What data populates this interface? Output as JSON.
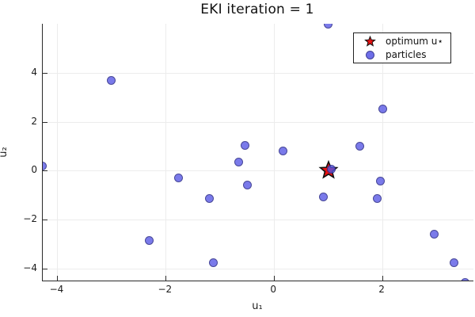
{
  "title": "EKI iteration = 1",
  "legend": {
    "items": [
      {
        "label": "optimum u⋆",
        "marker": "star",
        "color": "#ea1111"
      },
      {
        "label": "particles",
        "marker": "circle",
        "color": "#5e5ee4"
      }
    ]
  },
  "colors": {
    "particle_fill": "rgba(85,85,228,0.78)",
    "particle_stroke": "rgba(10,10,50,0.45)",
    "star_fill": "#ea1111",
    "star_stroke": "#111111",
    "grid": "#ececec",
    "spine": "#2b2b2b"
  },
  "chart_data": {
    "type": "scatter",
    "title": "EKI iteration = 1",
    "xlabel": "u₁",
    "ylabel": "u₂",
    "xlim": [
      -4.27,
      3.68
    ],
    "ylim": [
      -4.5,
      6.02
    ],
    "grid": true,
    "legend_position": "top-right",
    "xticks": {
      "values": [
        -4,
        -2,
        0,
        2
      ],
      "labels": [
        "−4",
        "−2",
        "0",
        "2"
      ]
    },
    "yticks": {
      "values": [
        4,
        2,
        0,
        -2,
        -4
      ],
      "labels": [
        "4",
        "2",
        "0",
        "−2",
        "−4"
      ]
    },
    "series": [
      {
        "name": "optimum u⋆",
        "marker": "star",
        "color": "#ea1111",
        "points": [
          [
            1.0,
            0.0
          ]
        ]
      },
      {
        "name": "particles",
        "marker": "circle",
        "color": "rgba(85,85,228,0.78)",
        "points": [
          [
            -4.28,
            0.2
          ],
          [
            -3.01,
            3.69
          ],
          [
            -2.31,
            -2.87
          ],
          [
            -1.76,
            -0.31
          ],
          [
            -1.19,
            -1.13
          ],
          [
            -1.12,
            -3.76
          ],
          [
            -0.66,
            0.35
          ],
          [
            -0.54,
            1.04
          ],
          [
            -0.49,
            -0.59
          ],
          [
            0.16,
            0.8
          ],
          [
            0.91,
            -1.09
          ],
          [
            1.0,
            6.0
          ],
          [
            1.06,
            0.07
          ],
          [
            1.59,
            1.0
          ],
          [
            1.91,
            -1.15
          ],
          [
            1.97,
            -0.44
          ],
          [
            2.0,
            2.52
          ],
          [
            2.95,
            -2.61
          ],
          [
            3.32,
            -3.77
          ],
          [
            3.53,
            -4.57
          ]
        ]
      }
    ]
  }
}
